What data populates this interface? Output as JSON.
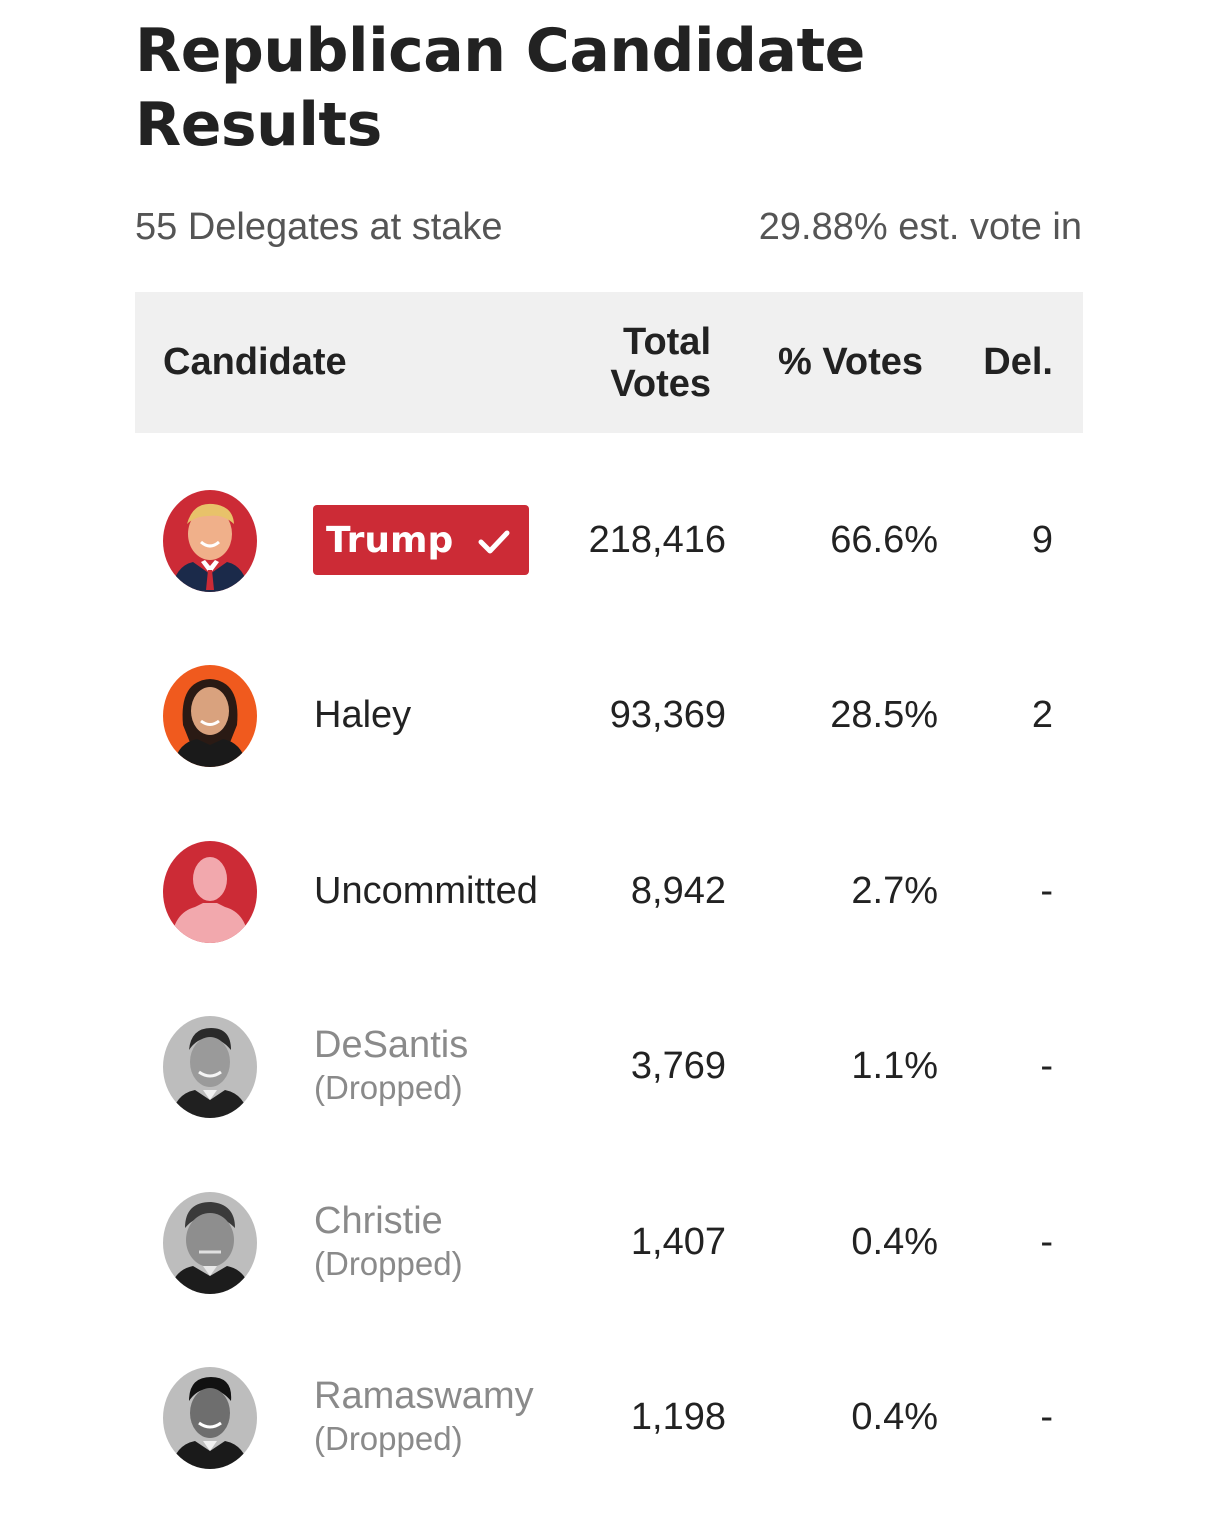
{
  "page": {
    "title": "Republican Candidate Results",
    "delegates_at_stake": "55 Delegates at stake",
    "est_vote_in": "29.88% est. vote in"
  },
  "table": {
    "headers": {
      "candidate": "Candidate",
      "total_votes_line1": "Total",
      "total_votes_line2": "Votes",
      "pct_votes": "% Votes",
      "delegates": "Del."
    },
    "rows": [
      {
        "name": "Trump",
        "status": "",
        "votes": "218,416",
        "pct": "66.6%",
        "del": "9",
        "winner": true,
        "avatar_bg": "#cc2b36"
      },
      {
        "name": "Haley",
        "status": "",
        "votes": "93,369",
        "pct": "28.5%",
        "del": "2",
        "winner": false,
        "avatar_bg": "#f05a1e"
      },
      {
        "name": "Uncommitted",
        "status": "",
        "votes": "8,942",
        "pct": "2.7%",
        "del": "-",
        "winner": false,
        "avatar_bg": "#cc2b36"
      },
      {
        "name": "DeSantis",
        "status": "(Dropped)",
        "votes": "3,769",
        "pct": "1.1%",
        "del": "-",
        "winner": false,
        "avatar_bg": "#bdbdbd"
      },
      {
        "name": "Christie",
        "status": "(Dropped)",
        "votes": "1,407",
        "pct": "0.4%",
        "del": "-",
        "winner": false,
        "avatar_bg": "#bdbdbd"
      },
      {
        "name": "Ramaswamy",
        "status": "(Dropped)",
        "votes": "1,198",
        "pct": "0.4%",
        "del": "-",
        "winner": false,
        "avatar_bg": "#bdbdbd"
      }
    ]
  },
  "colors": {
    "accent_red": "#cc2b36",
    "header_bg": "#f0f0f0",
    "dropped_text": "#8a8a8a"
  },
  "icons": {
    "winner": "checkmark-icon",
    "placeholder_avatar": "person-silhouette-icon"
  }
}
